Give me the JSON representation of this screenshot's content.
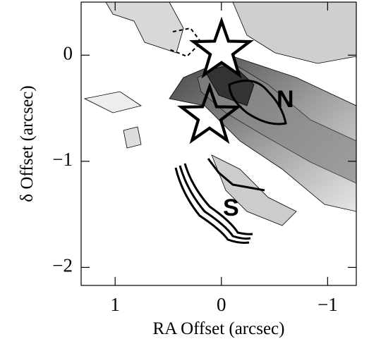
{
  "chart_data": {
    "type": "contour",
    "xlabel": "RA Offset (arcsec)",
    "ylabel": "δ Offset (arcsec)",
    "xlim": [
      1.32,
      -1.27
    ],
    "ylim": [
      -2.17,
      0.5
    ],
    "xticks": [
      1,
      0,
      {
        "value": -1,
        "label": "−1"
      }
    ],
    "yticks": [
      0,
      {
        "value": -1,
        "label": "−1"
      },
      {
        "value": -2,
        "label": "−2"
      }
    ],
    "annotations": [
      "N",
      "S"
    ]
  }
}
